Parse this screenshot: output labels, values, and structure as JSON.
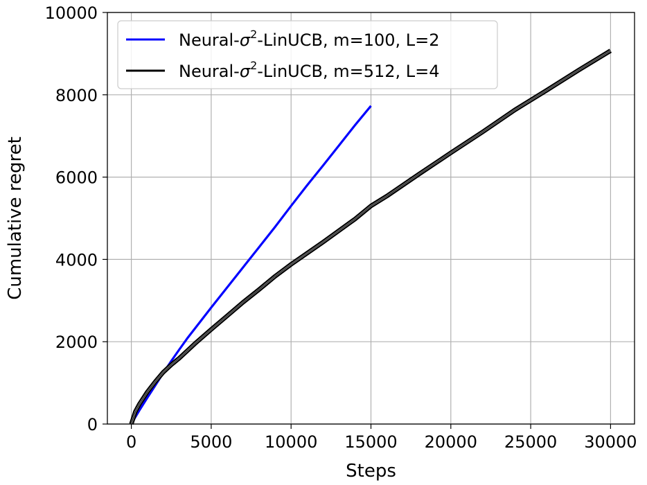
{
  "chart_data": {
    "type": "line",
    "title": "",
    "xlabel": "Steps",
    "ylabel": "Cumulative regret",
    "xlim": [
      -1500,
      31500
    ],
    "ylim": [
      0,
      10000
    ],
    "xticks": [
      0,
      5000,
      10000,
      15000,
      20000,
      25000,
      30000
    ],
    "yticks": [
      0,
      2000,
      4000,
      6000,
      8000,
      10000
    ],
    "grid": true,
    "legend_position": "top-left",
    "series": [
      {
        "name": "Neural-σ²-LinUCB, m=100, L=2",
        "legend": {
          "pre": "Neural-",
          "sym": "σ",
          "sup": "2",
          "post": "-LinUCB, m=100, L=2"
        },
        "color": "#0000ff",
        "band": false,
        "x": [
          0,
          250,
          500,
          1000,
          1500,
          2000,
          2500,
          3000,
          3500,
          4000,
          5000,
          6000,
          7000,
          8000,
          9000,
          10000,
          11000,
          12000,
          13000,
          14000,
          15000
        ],
        "y": [
          0,
          170,
          330,
          640,
          940,
          1240,
          1530,
          1810,
          2080,
          2330,
          2830,
          3320,
          3810,
          4300,
          4790,
          5300,
          5800,
          6280,
          6770,
          7260,
          7730
        ]
      },
      {
        "name": "Neural-σ²-LinUCB, m=512, L=4",
        "legend": {
          "pre": "Neural-",
          "sym": "σ",
          "sup": "2",
          "post": "-LinUCB, m=512, L=4"
        },
        "color": "#000000",
        "band": true,
        "x": [
          0,
          250,
          500,
          1000,
          1500,
          2000,
          2500,
          3000,
          4000,
          5000,
          6000,
          7000,
          8000,
          9000,
          10000,
          12000,
          14000,
          15000,
          16000,
          18000,
          20000,
          22000,
          24000,
          26000,
          28000,
          30000
        ],
        "y": [
          0,
          300,
          480,
          780,
          1030,
          1260,
          1440,
          1600,
          1960,
          2300,
          2630,
          2960,
          3270,
          3590,
          3880,
          4420,
          4980,
          5300,
          5540,
          6070,
          6590,
          7100,
          7630,
          8110,
          8600,
          9070
        ]
      }
    ]
  }
}
